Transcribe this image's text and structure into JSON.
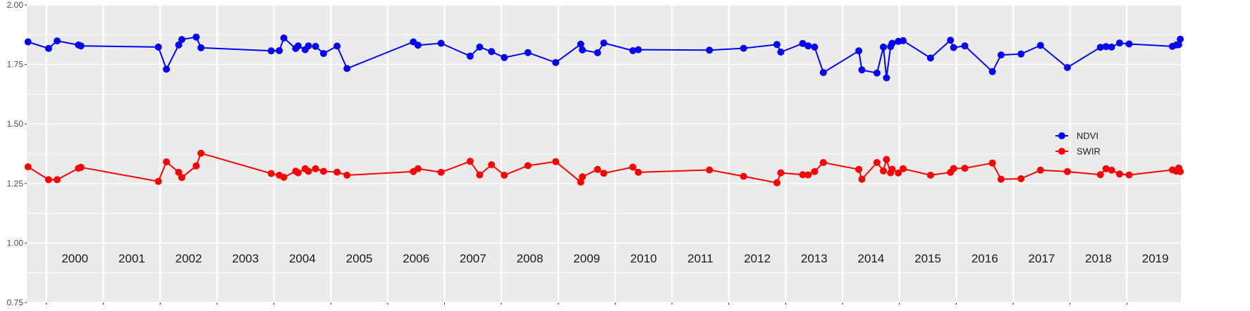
{
  "chart_data": {
    "type": "line",
    "title": "",
    "xlabel": "",
    "ylabel": "",
    "ylim": [
      0.75,
      2.0
    ],
    "xlim": [
      "1999-08-28",
      "2019-12-14"
    ],
    "y_ticks": [
      {
        "value": 0.75,
        "label": "0.75"
      },
      {
        "value": 1.0,
        "label": "1.00"
      },
      {
        "value": 1.25,
        "label": "1.25"
      },
      {
        "value": 1.5,
        "label": "1.50"
      },
      {
        "value": 1.75,
        "label": "1.75"
      },
      {
        "value": 2.0,
        "label": "2.00"
      }
    ],
    "year_labels": [
      "2000",
      "2001",
      "2002",
      "2003",
      "2004",
      "2005",
      "2006",
      "2007",
      "2008",
      "2009",
      "2010",
      "2011",
      "2012",
      "2013",
      "2014",
      "2015",
      "2016",
      "2017",
      "2018",
      "2019"
    ],
    "year_bounds": [
      "2000-01-01",
      "2001-01-01",
      "2002-01-01",
      "2003-01-01",
      "2004-01-01",
      "2005-01-01",
      "2006-01-01",
      "2007-01-01",
      "2008-01-01",
      "2009-01-01",
      "2010-01-01",
      "2011-01-01",
      "2012-01-01",
      "2013-01-01",
      "2014-01-01",
      "2015-01-01",
      "2016-01-01",
      "2017-01-01",
      "2018-01-01",
      "2019-01-01",
      "2020-01-01"
    ],
    "grid": true,
    "legend_position": "right",
    "series": [
      {
        "name": "NDVI",
        "color": "#0000ff",
        "points": [
          [
            "1999-09-05",
            1.845
          ],
          [
            "2000-01-15",
            1.817
          ],
          [
            "2000-03-10",
            1.849
          ],
          [
            "2000-07-25",
            1.832
          ],
          [
            "2000-08-10",
            1.828
          ],
          [
            "2001-12-20",
            1.823
          ],
          [
            "2002-02-10",
            1.73
          ],
          [
            "2002-04-30",
            1.832
          ],
          [
            "2002-05-20",
            1.855
          ],
          [
            "2002-08-20",
            1.865
          ],
          [
            "2002-09-20",
            1.82
          ],
          [
            "2003-12-15",
            1.807
          ],
          [
            "2004-02-05",
            1.808
          ],
          [
            "2004-03-05",
            1.861
          ],
          [
            "2004-05-20",
            1.817
          ],
          [
            "2004-06-05",
            1.828
          ],
          [
            "2004-07-20",
            1.812
          ],
          [
            "2004-08-10",
            1.828
          ],
          [
            "2004-09-25",
            1.826
          ],
          [
            "2004-11-15",
            1.796
          ],
          [
            "2005-02-10",
            1.827
          ],
          [
            "2005-04-15",
            1.733
          ],
          [
            "2006-06-15",
            1.845
          ],
          [
            "2006-07-15",
            1.831
          ],
          [
            "2006-12-10",
            1.839
          ],
          [
            "2007-06-15",
            1.785
          ],
          [
            "2007-08-15",
            1.823
          ],
          [
            "2007-10-30",
            1.804
          ],
          [
            "2008-01-20",
            1.779
          ],
          [
            "2008-06-20",
            1.8
          ],
          [
            "2008-12-15",
            1.758
          ],
          [
            "2009-05-25",
            1.835
          ],
          [
            "2009-06-05",
            1.811
          ],
          [
            "2009-09-10",
            1.799
          ],
          [
            "2009-10-20",
            1.84
          ],
          [
            "2010-04-25",
            1.808
          ],
          [
            "2010-05-30",
            1.812
          ],
          [
            "2011-08-30",
            1.81
          ],
          [
            "2012-04-05",
            1.818
          ],
          [
            "2012-11-05",
            1.834
          ],
          [
            "2012-11-30",
            1.802
          ],
          [
            "2013-04-20",
            1.838
          ],
          [
            "2013-05-25",
            1.828
          ],
          [
            "2013-07-05",
            1.823
          ],
          [
            "2013-08-30",
            1.716
          ],
          [
            "2014-04-15",
            1.807
          ],
          [
            "2014-05-05",
            1.727
          ],
          [
            "2014-08-10",
            1.714
          ],
          [
            "2014-09-20",
            1.823
          ],
          [
            "2014-10-10",
            1.694
          ],
          [
            "2014-11-05",
            1.825
          ],
          [
            "2014-11-15",
            1.839
          ],
          [
            "2014-12-25",
            1.847
          ],
          [
            "2015-01-25",
            1.85
          ],
          [
            "2015-07-20",
            1.777
          ],
          [
            "2015-11-25",
            1.852
          ],
          [
            "2015-12-15",
            1.821
          ],
          [
            "2016-02-25",
            1.828
          ],
          [
            "2016-08-20",
            1.72
          ],
          [
            "2016-10-15",
            1.79
          ],
          [
            "2017-02-20",
            1.794
          ],
          [
            "2017-06-25",
            1.83
          ],
          [
            "2017-12-15",
            1.737
          ],
          [
            "2018-07-15",
            1.822
          ],
          [
            "2018-08-20",
            1.825
          ],
          [
            "2018-09-25",
            1.823
          ],
          [
            "2018-11-15",
            1.84
          ],
          [
            "2019-01-15",
            1.836
          ],
          [
            "2019-10-20",
            1.826
          ],
          [
            "2019-11-15",
            1.832
          ],
          [
            "2019-11-30",
            1.833
          ],
          [
            "2019-12-10",
            1.856
          ]
        ]
      },
      {
        "name": "SWIR",
        "color": "#ff0000",
        "points": [
          [
            "1999-09-05",
            1.32
          ],
          [
            "2000-01-15",
            1.266
          ],
          [
            "2000-03-10",
            1.266
          ],
          [
            "2000-07-25",
            1.314
          ],
          [
            "2000-08-10",
            1.318
          ],
          [
            "2001-12-20",
            1.259
          ],
          [
            "2002-02-10",
            1.341
          ],
          [
            "2002-04-30",
            1.297
          ],
          [
            "2002-05-20",
            1.275
          ],
          [
            "2002-08-20",
            1.324
          ],
          [
            "2002-09-20",
            1.377
          ],
          [
            "2003-12-15",
            1.292
          ],
          [
            "2004-02-05",
            1.285
          ],
          [
            "2004-03-05",
            1.276
          ],
          [
            "2004-05-20",
            1.302
          ],
          [
            "2004-06-05",
            1.295
          ],
          [
            "2004-07-20",
            1.312
          ],
          [
            "2004-08-10",
            1.301
          ],
          [
            "2004-09-25",
            1.312
          ],
          [
            "2004-11-15",
            1.301
          ],
          [
            "2005-02-10",
            1.298
          ],
          [
            "2005-04-15",
            1.285
          ],
          [
            "2006-06-15",
            1.3
          ],
          [
            "2006-07-15",
            1.312
          ],
          [
            "2006-12-10",
            1.297
          ],
          [
            "2007-06-15",
            1.343
          ],
          [
            "2007-08-15",
            1.286
          ],
          [
            "2007-10-30",
            1.329
          ],
          [
            "2008-01-20",
            1.285
          ],
          [
            "2008-06-20",
            1.325
          ],
          [
            "2008-12-15",
            1.342
          ],
          [
            "2009-05-25",
            1.256
          ],
          [
            "2009-06-05",
            1.278
          ],
          [
            "2009-09-10",
            1.309
          ],
          [
            "2009-10-20",
            1.293
          ],
          [
            "2010-04-25",
            1.319
          ],
          [
            "2010-05-30",
            1.297
          ],
          [
            "2011-08-30",
            1.307
          ],
          [
            "2012-04-05",
            1.28
          ],
          [
            "2012-11-05",
            1.253
          ],
          [
            "2012-11-30",
            1.295
          ],
          [
            "2013-04-20",
            1.287
          ],
          [
            "2013-05-25",
            1.286
          ],
          [
            "2013-07-05",
            1.3
          ],
          [
            "2013-08-30",
            1.338
          ],
          [
            "2014-04-15",
            1.309
          ],
          [
            "2014-05-05",
            1.268
          ],
          [
            "2014-08-10",
            1.338
          ],
          [
            "2014-09-20",
            1.303
          ],
          [
            "2014-10-10",
            1.351
          ],
          [
            "2014-11-05",
            1.295
          ],
          [
            "2014-11-15",
            1.31
          ],
          [
            "2014-12-25",
            1.294
          ],
          [
            "2015-01-25",
            1.312
          ],
          [
            "2015-07-20",
            1.285
          ],
          [
            "2015-11-25",
            1.297
          ],
          [
            "2015-12-15",
            1.313
          ],
          [
            "2016-02-25",
            1.314
          ],
          [
            "2016-08-20",
            1.336
          ],
          [
            "2016-10-15",
            1.268
          ],
          [
            "2017-02-20",
            1.27
          ],
          [
            "2017-06-25",
            1.306
          ],
          [
            "2017-12-15",
            1.3
          ],
          [
            "2018-07-15",
            1.287
          ],
          [
            "2018-08-20",
            1.312
          ],
          [
            "2018-09-25",
            1.306
          ],
          [
            "2018-11-15",
            1.29
          ],
          [
            "2019-01-15",
            1.286
          ],
          [
            "2019-10-20",
            1.307
          ],
          [
            "2019-11-15",
            1.302
          ],
          [
            "2019-11-30",
            1.315
          ],
          [
            "2019-12-10",
            1.3
          ]
        ]
      }
    ]
  }
}
